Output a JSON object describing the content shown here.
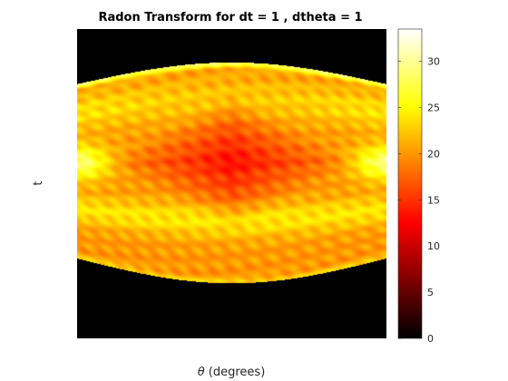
{
  "chart_data": {
    "type": "heatmap",
    "title": "Radon Transform for dt = 1 , dtheta = 1",
    "xlabel_symbol": "θ",
    "xlabel_text": " (degrees)",
    "ylabel": "t",
    "colormap": "hot",
    "colorbar": {
      "ticks": [
        "0",
        "5",
        "10",
        "15",
        "20",
        "25",
        "30"
      ],
      "range": [
        0,
        33.5
      ]
    },
    "grid": false,
    "x_ticks_visible": false,
    "y_ticks_visible": false,
    "theta_range_deg": [
      0,
      180
    ],
    "description_of_values": {
      "background": 0,
      "upper_edge_max": 31,
      "outer_band_peak": 33,
      "central_region": 15
    }
  }
}
